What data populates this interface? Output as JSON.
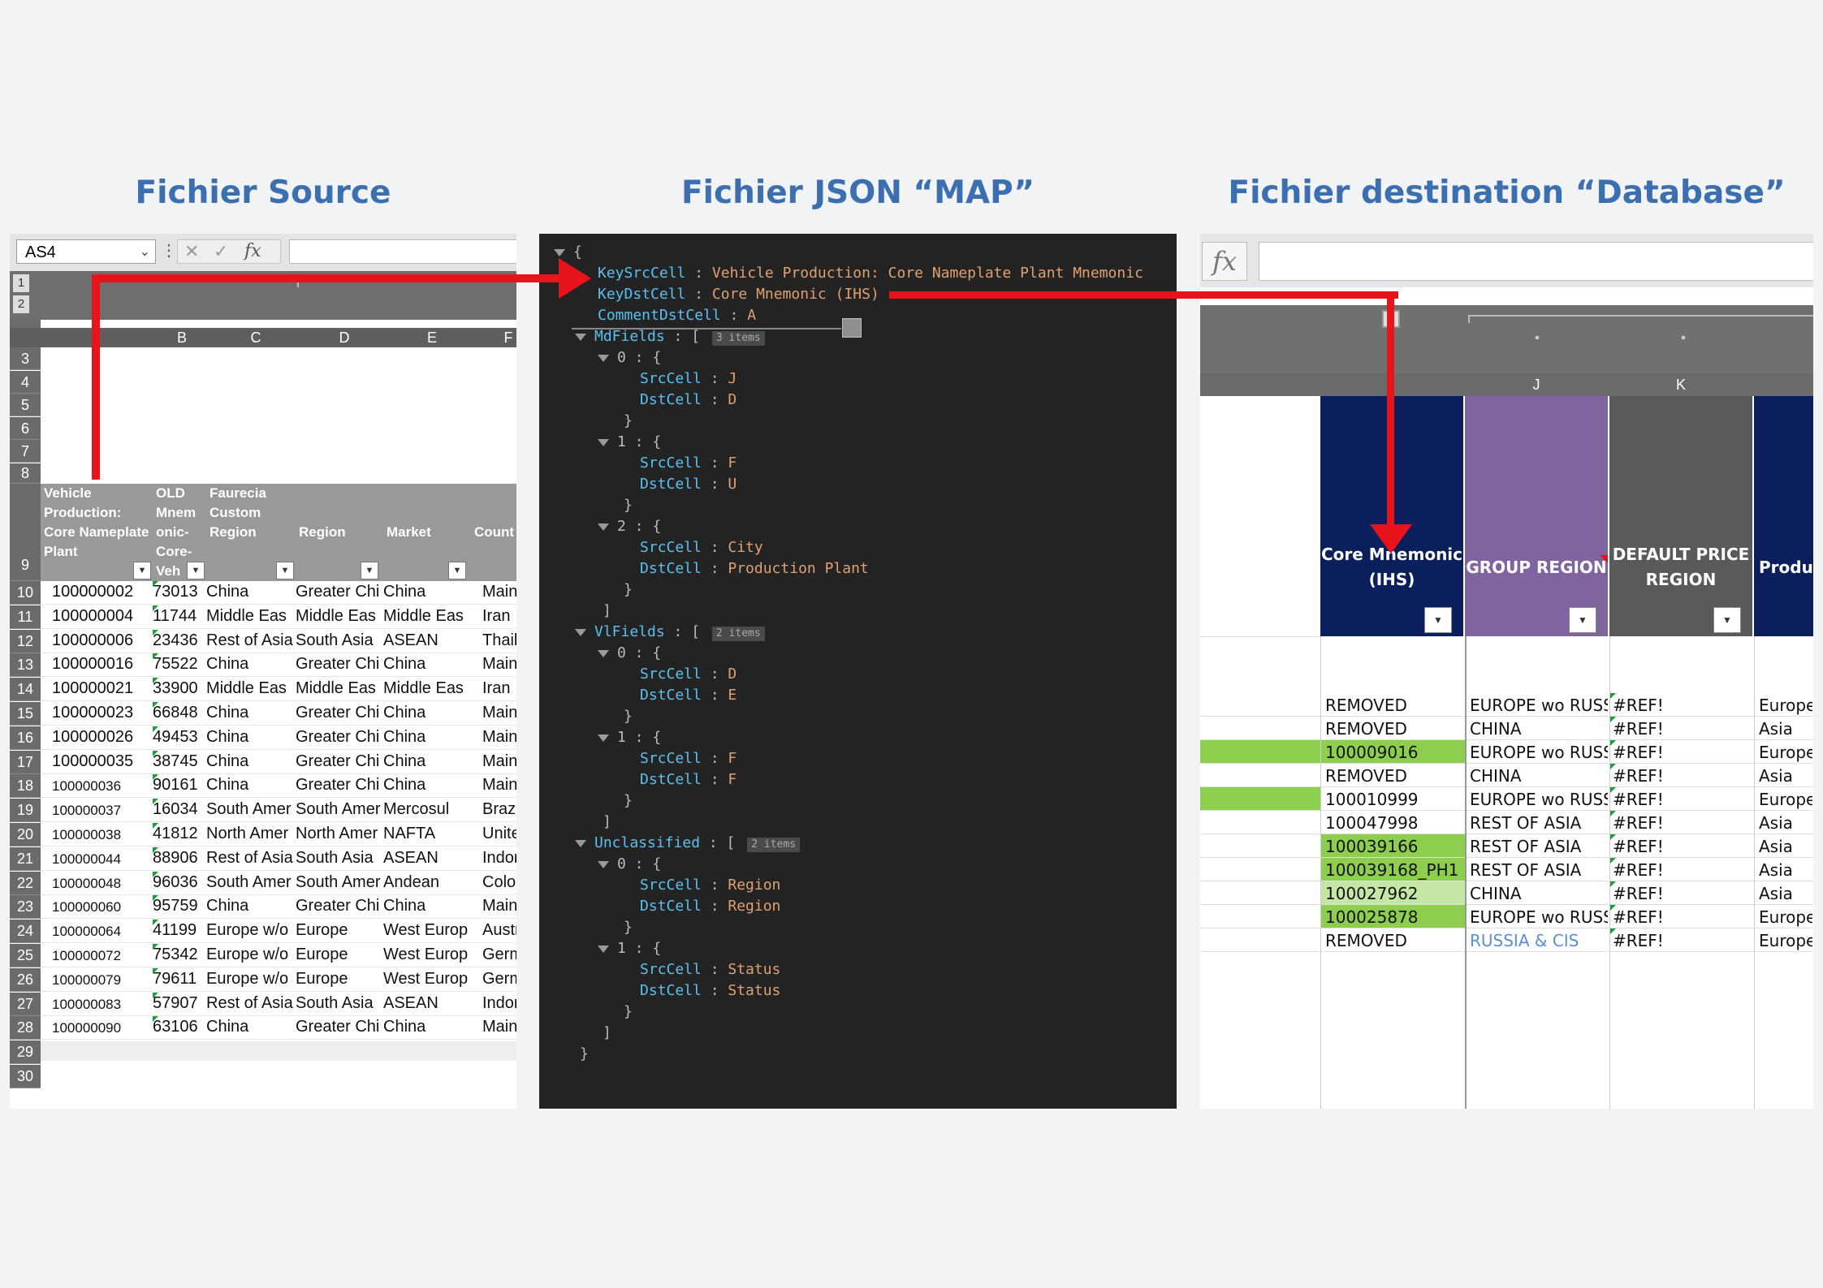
{
  "titles": {
    "source": "Fichier Source",
    "json": "Fichier JSON “MAP”",
    "destination": "Fichier destination “Database”"
  },
  "source": {
    "name_box": "AS4",
    "fx_symbol": "fx",
    "outline_levels": [
      "1",
      "2"
    ],
    "column_letters": [
      "B",
      "C",
      "D",
      "E",
      "F"
    ],
    "row_numbers": [
      "3",
      "4",
      "5",
      "6",
      "7",
      "8",
      "9",
      "10",
      "11",
      "12",
      "13",
      "14",
      "15",
      "16",
      "17",
      "18",
      "19",
      "20",
      "21",
      "22",
      "23",
      "24",
      "25",
      "26",
      "27",
      "28",
      "29",
      "30"
    ],
    "headers": [
      "Vehicle Production: Core Nameplate Plant",
      "OLD Mnem onic- Core- Veh",
      "Faurecia Custom Region",
      "Region",
      "Market",
      "Count"
    ],
    "rows": [
      [
        "100000002",
        "73013",
        "China",
        "Greater Chi",
        "China",
        "Mainla"
      ],
      [
        "100000004",
        "11744",
        "Middle Eas",
        "Middle Eas",
        "Middle Eas",
        "Iran"
      ],
      [
        "100000006",
        "23436",
        "Rest of Asia",
        "South Asia",
        "ASEAN",
        "Thaila"
      ],
      [
        "100000016",
        "75522",
        "China",
        "Greater Chi",
        "China",
        "Mainla"
      ],
      [
        "100000021",
        "33900",
        "Middle Eas",
        "Middle Eas",
        "Middle Eas",
        "Iran"
      ],
      [
        "100000023",
        "66848",
        "China",
        "Greater Chi",
        "China",
        "Mainla"
      ],
      [
        "100000026",
        "49453",
        "China",
        "Greater Chi",
        "China",
        "Mainla"
      ],
      [
        "100000035",
        "38745",
        "China",
        "Greater Chi",
        "China",
        "Mainla"
      ],
      [
        "100000036",
        "90161",
        "China",
        "Greater Chi",
        "China",
        "Mainla"
      ],
      [
        "100000037",
        "16034",
        "South Amer",
        "South Amer",
        "Mercosul",
        "Brazil"
      ],
      [
        "100000038",
        "41812",
        "North Amer",
        "North Amer",
        "NAFTA",
        "United"
      ],
      [
        "100000044",
        "88906",
        "Rest of Asia",
        "South Asia",
        "ASEAN",
        "Indone"
      ],
      [
        "100000048",
        "96036",
        "South Amer",
        "South Amer",
        "Andean",
        "Colom"
      ],
      [
        "100000060",
        "95759",
        "China",
        "Greater Chi",
        "China",
        "Mainla"
      ],
      [
        "100000064",
        "41199",
        "Europe w/o",
        "Europe",
        "West Europ",
        "Austri"
      ],
      [
        "100000072",
        "75342",
        "Europe w/o",
        "Europe",
        "West Europ",
        "Germa"
      ],
      [
        "100000079",
        "79611",
        "Europe w/o",
        "Europe",
        "West Europ",
        "Germa"
      ],
      [
        "100000083",
        "57907",
        "Rest of Asia",
        "South Asia",
        "ASEAN",
        "Indone"
      ],
      [
        "100000090",
        "63106",
        "China",
        "Greater Chi",
        "China",
        "Mainla"
      ]
    ]
  },
  "json_map": {
    "KeySrcCell": "Vehicle Production: Core Nameplate Plant Mnemonic",
    "KeyDstCell": "Core Mnemonic (IHS)",
    "CommentDstCell": "A",
    "MdFields": {
      "count_badge": "3 items",
      "items": [
        {
          "index": "0",
          "SrcCell": "J",
          "DstCell": "D"
        },
        {
          "index": "1",
          "SrcCell": "F",
          "DstCell": "U"
        },
        {
          "index": "2",
          "SrcCell": "City",
          "DstCell": "Production Plant"
        }
      ]
    },
    "VlFields": {
      "count_badge": "2 items",
      "items": [
        {
          "index": "0",
          "SrcCell": "D",
          "DstCell": "E"
        },
        {
          "index": "1",
          "SrcCell": "F",
          "DstCell": "F"
        }
      ]
    },
    "Unclassified": {
      "count_badge": "2 items",
      "items": [
        {
          "index": "0",
          "SrcCell": "Region",
          "DstCell": "Region"
        },
        {
          "index": "1",
          "SrcCell": "Status",
          "DstCell": "Status"
        }
      ]
    }
  },
  "destination": {
    "fx_symbol": "fx",
    "column_letters": [
      "J",
      "K"
    ],
    "headers": [
      {
        "label": "Core Mnemonic (IHS)",
        "color": "#0a1f5c"
      },
      {
        "label": "GROUP REGION",
        "color": "#7f64a0"
      },
      {
        "label": "DEFAULT PRICE REGION",
        "color": "#5a5a5a"
      },
      {
        "label": "Product",
        "color": "#0a1f5c"
      }
    ],
    "rows": [
      {
        "mnemonic": "REMOVED",
        "group": "EUROPE wo RUSS",
        "price": "#REF!",
        "product": "Europe",
        "hl": ""
      },
      {
        "mnemonic": "REMOVED",
        "group": "CHINA",
        "price": "#REF!",
        "product": "Asia",
        "hl": ""
      },
      {
        "mnemonic": "100009016",
        "group": "EUROPE wo RUSS",
        "price": "#REF!",
        "product": "Europe",
        "hl": "row"
      },
      {
        "mnemonic": "REMOVED",
        "group": "CHINA",
        "price": "#REF!",
        "product": "Asia",
        "hl": ""
      },
      {
        "mnemonic": "100010999",
        "group": "EUROPE wo RUSS",
        "price": "#REF!",
        "product": "Europe",
        "hl": "row-left"
      },
      {
        "mnemonic": "100047998",
        "group": "REST OF ASIA",
        "price": "#REF!",
        "product": "Asia",
        "hl": ""
      },
      {
        "mnemonic": "100039166",
        "group": "REST OF ASIA",
        "price": "#REF!",
        "product": "Asia",
        "hl": "cell"
      },
      {
        "mnemonic": "100039168_PH1",
        "group": "REST OF ASIA",
        "price": "#REF!",
        "product": "Asia",
        "hl": "cell"
      },
      {
        "mnemonic": "100027962",
        "group": "CHINA",
        "price": "#REF!",
        "product": "Asia",
        "hl": "light"
      },
      {
        "mnemonic": "100025878",
        "group": "EUROPE wo RUSS",
        "price": "#REF!",
        "product": "Europe",
        "hl": "cell"
      },
      {
        "mnemonic": "REMOVED",
        "group": "RUSSIA & CIS",
        "price": "#REF!",
        "product": "Europe",
        "hl": "link"
      }
    ],
    "colors": {
      "green": "#8dce4f",
      "light_green": "#c6e6a6",
      "link": "#5a8fd6"
    }
  },
  "arrows": {
    "color": "#e8141b"
  }
}
